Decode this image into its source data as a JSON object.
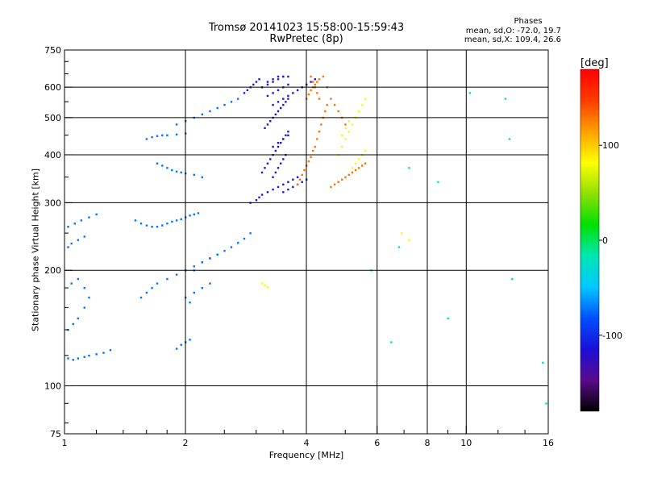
{
  "chart_data": {
    "type": "scatter",
    "title": "Tromsø 20141023 15:58:00-15:59:43",
    "subtitle": "RwPretec (8p)",
    "phases": {
      "heading": "Phases",
      "o_mode": "mean, sd,O: -72.0, 19.7",
      "x_mode": "mean, sd,X: 109.4, 26.6"
    },
    "xlabel": "Frequency [MHz]",
    "ylabel": "Stationary phase Virtual Height [km]",
    "x_scale": "log",
    "y_scale": "log",
    "xlim": [
      1,
      16
    ],
    "ylim": [
      75,
      750
    ],
    "x_ticks": [
      {
        "value": 1,
        "label": "1",
        "grid": true
      },
      {
        "value": 2,
        "label": "2",
        "grid": true
      },
      {
        "value": 4,
        "label": "4",
        "grid": true
      },
      {
        "value": 6,
        "label": "6",
        "grid": true
      },
      {
        "value": 8,
        "label": "8",
        "grid": true
      },
      {
        "value": 10,
        "label": "10",
        "grid": true
      },
      {
        "value": 16,
        "label": "16",
        "grid": false
      }
    ],
    "x_minor_ticks": [
      1.2,
      1.4,
      1.6,
      1.8,
      2.5,
      3,
      3.5,
      5,
      7,
      9,
      12,
      14
    ],
    "y_ticks": [
      {
        "value": 75,
        "label": "75",
        "grid": false
      },
      {
        "value": 100,
        "label": "100",
        "grid": true
      },
      {
        "value": 200,
        "label": "200",
        "grid": true
      },
      {
        "value": 300,
        "label": "300",
        "grid": true
      },
      {
        "value": 400,
        "label": "400",
        "grid": true
      },
      {
        "value": 500,
        "label": "500",
        "grid": true
      },
      {
        "value": 600,
        "label": "600",
        "grid": true
      },
      {
        "value": 750,
        "label": "750",
        "grid": false
      }
    ],
    "y_minor_ticks": [
      80,
      90,
      120,
      140,
      160,
      180,
      250,
      350,
      450,
      550,
      650,
      700
    ],
    "grid": true,
    "colorbar": {
      "label": "[deg]",
      "range": [
        -180,
        180
      ],
      "ticks": [
        {
          "value": 100,
          "label": "100"
        },
        {
          "value": 0,
          "label": "0"
        },
        {
          "value": -100,
          "label": "-100"
        }
      ],
      "colors": [
        "#000000",
        "#5a0a8c",
        "#1a10d8",
        "#0050ff",
        "#00c8ff",
        "#00e6b4",
        "#00e000",
        "#90e000",
        "#ffff00",
        "#ffa000",
        "#ff3c00",
        "#ff0000"
      ]
    },
    "series": [
      {
        "mode": "O",
        "phase_deg": -72,
        "x": [
          1.02,
          1.05,
          1.08,
          1.12,
          1.15,
          1.2,
          1.25,
          1.3,
          1.02,
          1.05,
          1.08,
          1.12,
          1.15,
          1.04,
          1.08,
          1.12,
          1.02,
          1.06,
          1.1,
          1.15,
          1.2,
          1.02,
          1.04,
          1.08,
          1.12,
          1.5,
          1.55,
          1.6,
          1.65,
          1.7,
          1.75,
          1.8,
          1.85,
          1.9,
          1.95,
          2.0,
          2.05,
          2.1,
          2.15,
          1.7,
          1.75,
          1.8,
          1.85,
          1.9,
          1.95,
          2.0,
          2.1,
          2.2,
          1.6,
          1.65,
          1.7,
          1.75,
          1.8,
          1.9,
          2.0,
          1.55,
          1.6,
          1.65,
          1.7,
          1.8,
          1.9,
          2.0,
          2.1,
          2.2,
          2.3,
          2.4,
          2.5,
          2.6,
          2.7,
          2.8,
          2.9,
          1.9,
          2.0,
          2.1,
          2.2,
          2.3,
          2.4,
          2.5,
          2.6,
          2.7,
          2.0,
          2.05,
          2.1,
          2.2,
          2.3,
          2.1,
          2.2,
          2.3,
          2.4,
          1.9,
          1.95,
          2.0,
          2.05
        ],
        "y": [
          118,
          117,
          118,
          119,
          120,
          121,
          122,
          124,
          140,
          145,
          150,
          160,
          170,
          185,
          190,
          180,
          260,
          265,
          270,
          275,
          280,
          230,
          235,
          240,
          245,
          270,
          265,
          262,
          260,
          260,
          262,
          265,
          268,
          270,
          272,
          275,
          278,
          280,
          282,
          380,
          375,
          370,
          365,
          362,
          360,
          358,
          355,
          350,
          440,
          445,
          448,
          450,
          450,
          452,
          455,
          170,
          175,
          180,
          185,
          190,
          195,
          200,
          205,
          210,
          215,
          220,
          225,
          230,
          236,
          242,
          250,
          480,
          490,
          500,
          510,
          520,
          530,
          540,
          550,
          560,
          170,
          165,
          175,
          180,
          185,
          200,
          210,
          215,
          220,
          125,
          128,
          130,
          132
        ]
      },
      {
        "mode": "O",
        "phase_deg": -110,
        "x": [
          2.9,
          3.0,
          3.05,
          3.1,
          3.2,
          3.3,
          3.4,
          3.5,
          3.6,
          3.7,
          3.8,
          3.1,
          3.15,
          3.2,
          3.25,
          3.3,
          3.35,
          3.4,
          3.45,
          3.5,
          3.55,
          3.6,
          3.15,
          3.2,
          3.25,
          3.3,
          3.35,
          3.4,
          3.45,
          3.5,
          3.55,
          3.6,
          3.2,
          3.3,
          3.4,
          3.5,
          3.6,
          3.2,
          3.3,
          3.4,
          3.5,
          3.6,
          3.1,
          3.2,
          3.3,
          3.4,
          3.5,
          2.8,
          2.85,
          2.9,
          2.95,
          3.0,
          3.05,
          3.3,
          3.35,
          3.4,
          3.45,
          3.5,
          3.55,
          3.3,
          3.4,
          3.5,
          3.6,
          3.3,
          3.4,
          3.5,
          3.6,
          3.7,
          3.8,
          3.9,
          4.0,
          4.1,
          4.2,
          3.5,
          3.6,
          3.7,
          3.8,
          3.9,
          4.0
        ],
        "y": [
          300,
          305,
          310,
          315,
          320,
          325,
          330,
          335,
          340,
          345,
          350,
          360,
          370,
          380,
          390,
          400,
          410,
          420,
          430,
          440,
          450,
          460,
          470,
          480,
          490,
          500,
          510,
          520,
          530,
          540,
          550,
          560,
          570,
          580,
          590,
          600,
          610,
          620,
          630,
          640,
          640,
          640,
          600,
          610,
          620,
          630,
          640,
          580,
          590,
          600,
          610,
          620,
          630,
          350,
          360,
          370,
          380,
          390,
          400,
          420,
          430,
          440,
          450,
          540,
          550,
          560,
          570,
          580,
          590,
          600,
          610,
          620,
          630,
          320,
          325,
          330,
          335,
          340,
          345
        ]
      },
      {
        "mode": "X",
        "phase_deg": 130,
        "x": [
          3.8,
          3.85,
          3.9,
          3.95,
          4.0,
          4.05,
          4.1,
          4.15,
          4.2,
          4.25,
          4.3,
          4.35,
          4.4,
          4.45,
          4.5,
          4.0,
          4.05,
          4.1,
          4.15,
          4.2,
          4.25,
          4.3,
          4.4,
          4.5,
          4.6,
          4.7,
          4.8,
          4.9,
          5.0,
          4.6,
          4.7,
          4.8,
          4.9,
          5.0,
          5.1,
          5.2,
          5.3,
          5.4,
          5.5,
          5.6,
          4.1,
          4.15,
          4.2,
          4.25,
          4.3
        ],
        "y": [
          335,
          345,
          355,
          365,
          375,
          385,
          395,
          410,
          420,
          440,
          460,
          480,
          500,
          520,
          540,
          560,
          575,
          590,
          600,
          610,
          620,
          630,
          640,
          600,
          560,
          540,
          520,
          500,
          480,
          330,
          335,
          340,
          345,
          350,
          355,
          360,
          365,
          370,
          375,
          380,
          640,
          620,
          600,
          580,
          560
        ]
      },
      {
        "mode": "X",
        "phase_deg": 80,
        "x": [
          4.8,
          4.9,
          5.0,
          5.1,
          5.2,
          5.3,
          5.4,
          5.5,
          5.6,
          5.2,
          5.3,
          5.4,
          5.5,
          5.6,
          3.1,
          3.15,
          3.2,
          6.9,
          7.2,
          4.9,
          5.0,
          5.1
        ],
        "y": [
          400,
          420,
          440,
          460,
          480,
          500,
          520,
          540,
          560,
          370,
          380,
          390,
          400,
          410,
          185,
          183,
          181,
          250,
          240,
          450,
          470,
          490
        ]
      },
      {
        "mode": "O",
        "phase_deg": -20,
        "x": [
          5.8,
          6.5,
          6.8,
          7.2,
          8.5,
          9.0,
          10.2,
          12.5,
          12.8,
          13.0,
          15.5,
          15.8
        ],
        "y": [
          200,
          130,
          230,
          370,
          340,
          150,
          580,
          560,
          440,
          190,
          115,
          90
        ]
      }
    ]
  }
}
